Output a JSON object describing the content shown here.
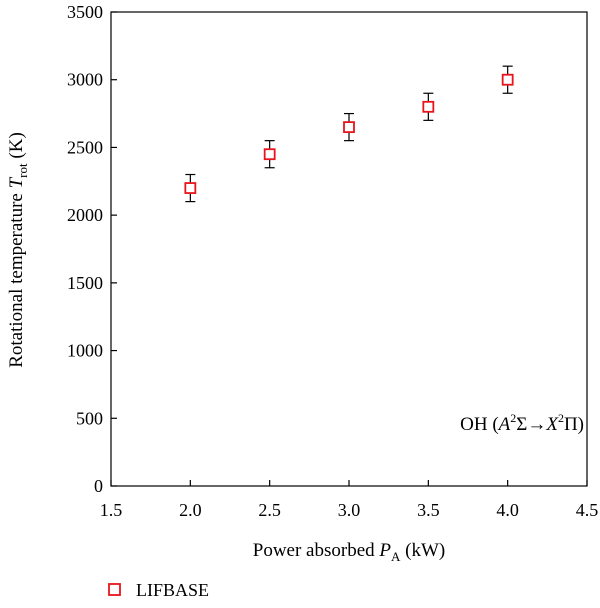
{
  "chart_data": {
    "type": "scatter",
    "xlabel": {
      "prefix": "Power absorbed ",
      "var": "P",
      "sub": "A",
      "unit": " (kW)"
    },
    "ylabel": {
      "prefix": "Rotational temperature ",
      "var": "T",
      "sub": "rot",
      "unit": " (K)"
    },
    "xlim": [
      1.5,
      4.5
    ],
    "ylim": [
      0,
      3500
    ],
    "xticks": [
      "1.5",
      "2.0",
      "2.5",
      "3.0",
      "3.5",
      "4.0",
      "4.5"
    ],
    "yticks": [
      "0",
      "500",
      "1000",
      "1500",
      "2000",
      "2500",
      "3000",
      "3500"
    ],
    "grid": false,
    "legend_position": "bottom-left, below plot",
    "series": [
      {
        "name": "LIFBASE",
        "color": "#e8141c",
        "marker": "open-square",
        "x": [
          2.0,
          2.5,
          3.0,
          3.5,
          4.0
        ],
        "y": [
          2200,
          2450,
          2650,
          2800,
          3000
        ],
        "yerr": [
          100,
          100,
          100,
          100,
          100
        ]
      }
    ],
    "annotation": {
      "species": "OH",
      "transition": {
        "upper": "A",
        "upper_sup": "2",
        "upper_term": "Σ",
        "arrow": "→",
        "lower": "X",
        "lower_sup": "2",
        "lower_term": "Π"
      },
      "position": "bottom-right inside plot"
    }
  }
}
